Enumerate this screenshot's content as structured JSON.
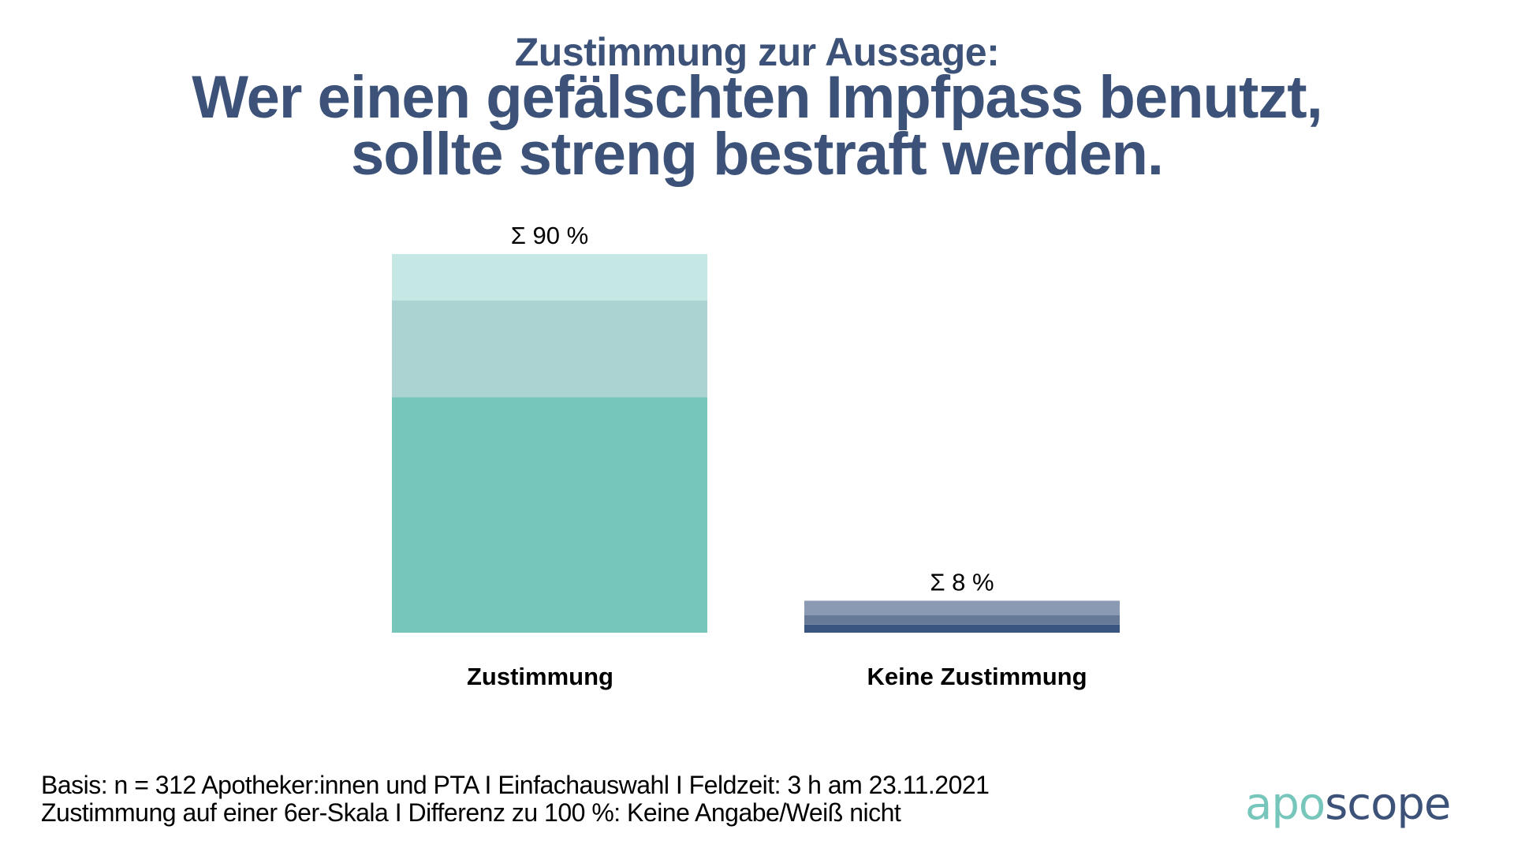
{
  "header": {
    "subtitle": "Zustimmung zur Aussage:",
    "title_line1": "Wer einen gefälschten Impfpass benutzt,",
    "title_line2": "sollte streng bestraft werden."
  },
  "chart_data": {
    "type": "bar",
    "stacked": true,
    "title": "Wer einen gefälschten Impfpass benutzt, sollte streng bestraft werden.",
    "subtitle": "Zustimmung zur Aussage:",
    "xlabel": "",
    "ylabel": "",
    "ylim": [
      0,
      100
    ],
    "unit": "%",
    "grid": false,
    "axes_visible": false,
    "categories": [
      "Zustimmung",
      "Keine Zustimmung"
    ],
    "bars": [
      {
        "category": "Zustimmung",
        "total_label": "Σ 90  %",
        "total": 90,
        "segments": [
          {
            "value": 56,
            "color": "#77c6bb"
          },
          {
            "value": 23,
            "color": "#aad3d1"
          },
          {
            "value": 11,
            "color": "#c5e8e4"
          }
        ]
      },
      {
        "category": "Keine Zustimmung",
        "total_label": "Σ 8  %",
        "total": 8,
        "segments": [
          {
            "value": 1.9,
            "color": "#3a5580"
          },
          {
            "value": 2.3,
            "color": "#677a97"
          },
          {
            "value": 3.4,
            "color": "#8a9ab3"
          }
        ]
      }
    ]
  },
  "footer": {
    "line1": "Basis: n = 312 Apotheker:innen und PTA I Einfachauswahl I Feldzeit: 3 h am 23.11.2021",
    "line2": "Zustimmung auf einer 6er-Skala I Differenz zu 100 %: Keine Angabe/Weiß nicht"
  },
  "logo": {
    "part1": "apo",
    "part2": "scope",
    "color1": "#77c6bb",
    "color2": "#3d5278"
  }
}
